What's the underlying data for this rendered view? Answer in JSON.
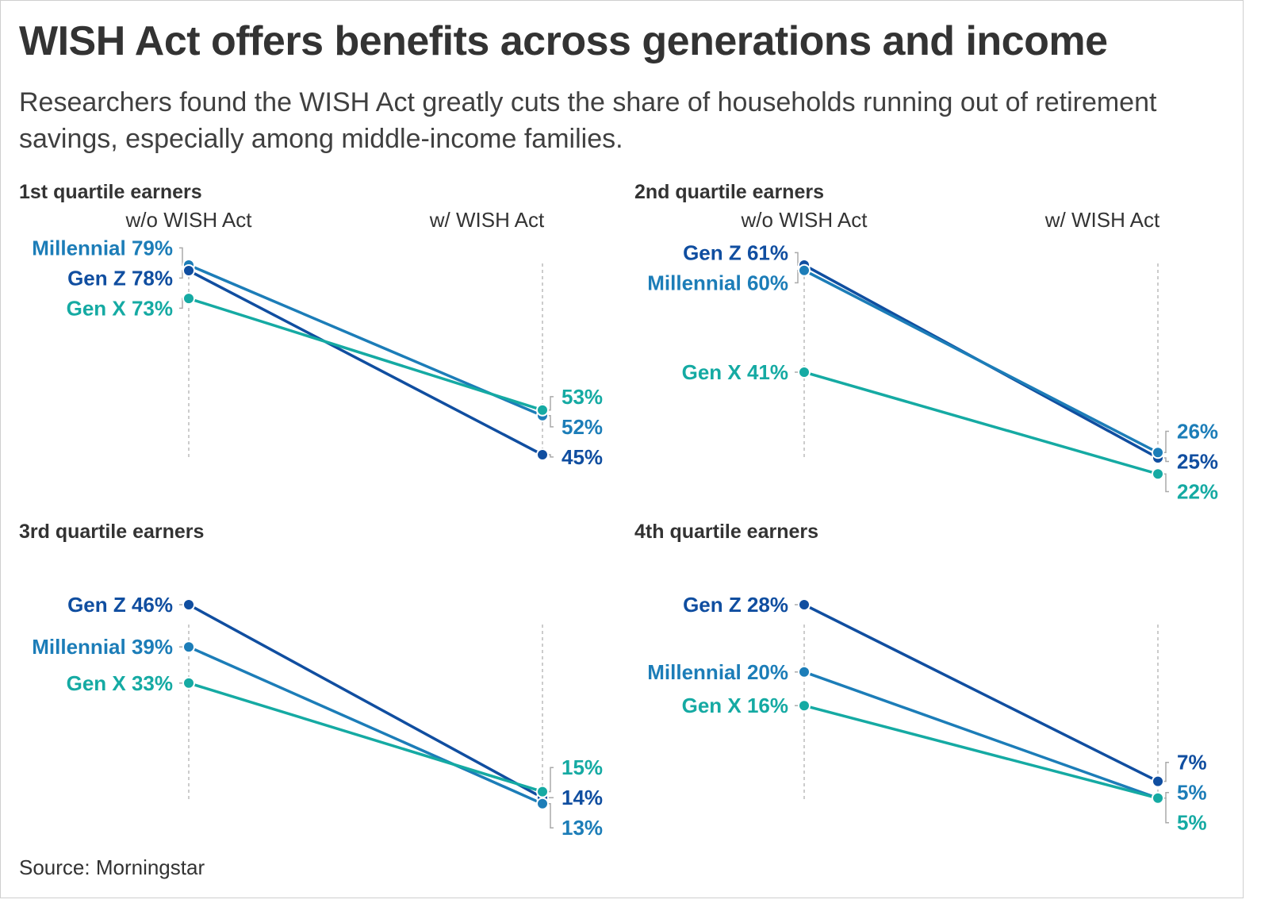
{
  "title": "WISH Act offers benefits across generations and income",
  "subtitle": "Researchers found the WISH Act greatly cuts the share of households running out of retirement savings, especially among middle-income families.",
  "source": "Source: Morningstar",
  "colors": {
    "Gen Z": "#104ea0",
    "Millennial": "#1c7db8",
    "Gen X": "#15aaa3"
  },
  "chart_data": [
    {
      "type": "line",
      "title": "1st quartile earners",
      "categories": [
        "w/o WISH Act",
        "w/ WISH Act"
      ],
      "show_column_headers": true,
      "series": [
        {
          "name": "Millennial",
          "values": [
            79,
            52
          ],
          "start_label": "Millennial 79%",
          "end_label": "52%"
        },
        {
          "name": "Gen Z",
          "values": [
            78,
            45
          ],
          "start_label": "Gen Z 78%",
          "end_label": "45%"
        },
        {
          "name": "Gen X",
          "values": [
            73,
            53
          ],
          "start_label": "Gen X 73%",
          "end_label": "53%"
        }
      ]
    },
    {
      "type": "line",
      "title": "2nd quartile earners",
      "categories": [
        "w/o WISH Act",
        "w/ WISH Act"
      ],
      "show_column_headers": true,
      "series": [
        {
          "name": "Gen Z",
          "values": [
            61,
            25
          ],
          "start_label": "Gen Z 61%",
          "end_label": "25%"
        },
        {
          "name": "Millennial",
          "values": [
            60,
            26
          ],
          "start_label": "Millennial 60%",
          "end_label": "26%"
        },
        {
          "name": "Gen X",
          "values": [
            41,
            22
          ],
          "start_label": "Gen X 41%",
          "end_label": "22%"
        }
      ]
    },
    {
      "type": "line",
      "title": "3rd quartile earners",
      "categories": [
        "w/o WISH Act",
        "w/ WISH Act"
      ],
      "show_column_headers": false,
      "series": [
        {
          "name": "Gen Z",
          "values": [
            46,
            14
          ],
          "start_label": "Gen Z 46%",
          "end_label": "14%"
        },
        {
          "name": "Millennial",
          "values": [
            39,
            13
          ],
          "start_label": "Millennial 39%",
          "end_label": "13%"
        },
        {
          "name": "Gen X",
          "values": [
            33,
            15
          ],
          "start_label": "Gen X 33%",
          "end_label": "15%"
        }
      ]
    },
    {
      "type": "line",
      "title": "4th quartile earners",
      "categories": [
        "w/o WISH Act",
        "w/ WISH Act"
      ],
      "show_column_headers": false,
      "series": [
        {
          "name": "Gen Z",
          "values": [
            28,
            7
          ],
          "start_label": "Gen Z 28%",
          "end_label": "7%"
        },
        {
          "name": "Millennial",
          "values": [
            20,
            5
          ],
          "start_label": "Millennial 20%",
          "end_label": "5%"
        },
        {
          "name": "Gen X",
          "values": [
            16,
            5
          ],
          "start_label": "Gen X 16%",
          "end_label": "5%"
        }
      ]
    }
  ]
}
